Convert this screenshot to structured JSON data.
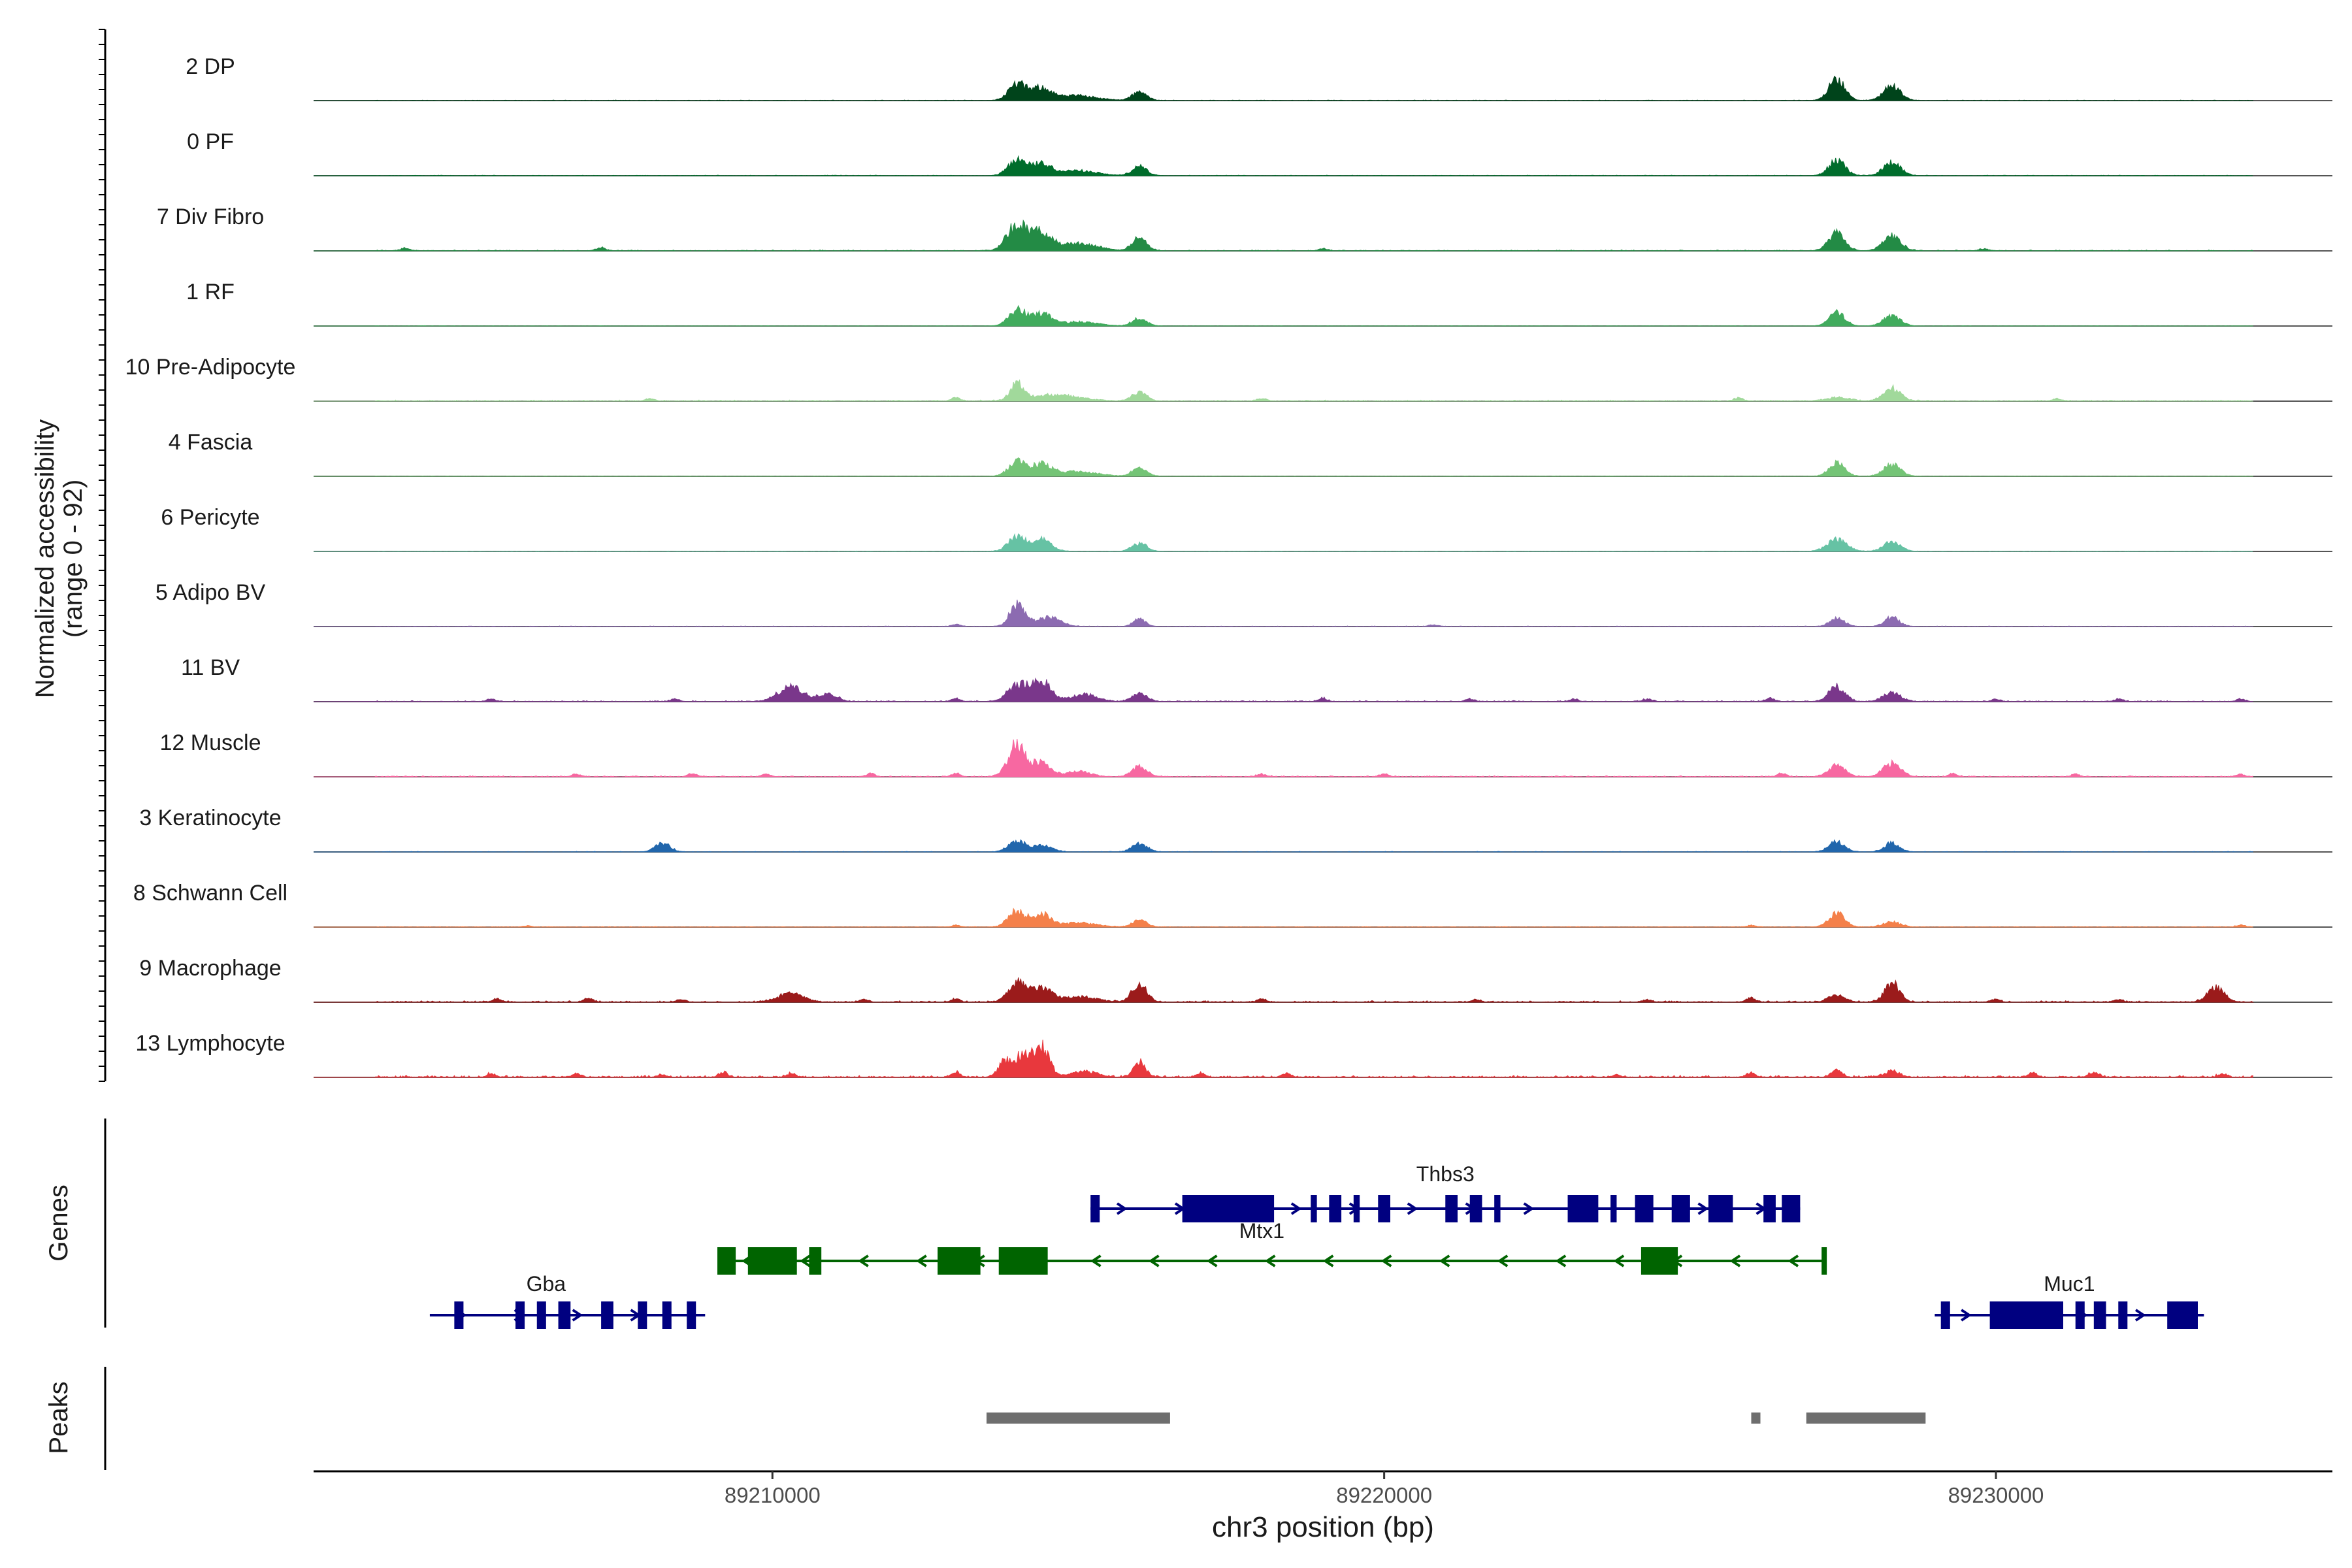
{
  "chart_data": {
    "type": "area",
    "title": "",
    "ylabel_line1": "Normalized accessibility",
    "ylabel_line2": "(range 0 - 92)",
    "xlabel": "chr3 position (bp)",
    "xlim": [
      89202500,
      89235500
    ],
    "ylim": [
      0,
      92
    ],
    "xticks": [
      89210000,
      89220000,
      89230000
    ],
    "xtick_labels": [
      "89210000",
      "89220000",
      "89230000"
    ],
    "panel_labels": {
      "genes": "Genes",
      "peaks": "Peaks"
    },
    "tracks": [
      {
        "name": "2 DP",
        "color": "#00441b",
        "peaks": [
          [
            89214000,
            40,
            140
          ],
          [
            89214400,
            30,
            160
          ],
          [
            89215000,
            12,
            300
          ],
          [
            89216000,
            20,
            120
          ],
          [
            89227400,
            50,
            130
          ],
          [
            89228300,
            35,
            140
          ]
        ],
        "noise": 1.5,
        "specks": []
      },
      {
        "name": "0 PF",
        "color": "#006d2c",
        "peaks": [
          [
            89214000,
            38,
            140
          ],
          [
            89214400,
            28,
            160
          ],
          [
            89215000,
            12,
            300
          ],
          [
            89216000,
            22,
            120
          ],
          [
            89227400,
            38,
            130
          ],
          [
            89228300,
            32,
            140
          ]
        ],
        "noise": 1.5,
        "specks": []
      },
      {
        "name": "7 Div Fibro",
        "color": "#238b45",
        "peaks": [
          [
            89214000,
            62,
            160
          ],
          [
            89214400,
            42,
            160
          ],
          [
            89215000,
            18,
            300
          ],
          [
            89216000,
            30,
            120
          ],
          [
            89227400,
            45,
            130
          ],
          [
            89228300,
            36,
            140
          ]
        ],
        "noise": 2.5,
        "specks": [
          [
            89204000,
            6
          ],
          [
            89207200,
            8
          ],
          [
            89219000,
            5
          ],
          [
            89229800,
            5
          ]
        ]
      },
      {
        "name": "1 RF",
        "color": "#41ab5d",
        "peaks": [
          [
            89214000,
            38,
            140
          ],
          [
            89214400,
            28,
            160
          ],
          [
            89215000,
            10,
            300
          ],
          [
            89216000,
            18,
            120
          ],
          [
            89227400,
            32,
            130
          ],
          [
            89228300,
            24,
            140
          ]
        ],
        "noise": 1.0,
        "specks": []
      },
      {
        "name": "10 Pre-Adipocyte",
        "color": "#a1d99b",
        "peaks": [
          [
            89214000,
            40,
            100
          ],
          [
            89214600,
            15,
            400
          ],
          [
            89216000,
            20,
            120
          ],
          [
            89227400,
            8,
            200
          ],
          [
            89228300,
            30,
            140
          ]
        ],
        "noise": 3.0,
        "specks": [
          [
            89208000,
            6
          ],
          [
            89213000,
            8
          ],
          [
            89218000,
            6
          ],
          [
            89225800,
            8
          ],
          [
            89231000,
            6
          ]
        ]
      },
      {
        "name": "4 Fascia",
        "color": "#74c476",
        "peaks": [
          [
            89214000,
            35,
            140
          ],
          [
            89214400,
            28,
            160
          ],
          [
            89215000,
            12,
            300
          ],
          [
            89216000,
            20,
            120
          ],
          [
            89227400,
            32,
            130
          ],
          [
            89228300,
            28,
            140
          ]
        ],
        "noise": 1.0,
        "specks": []
      },
      {
        "name": "6 Pericyte",
        "color": "#66c2a4",
        "peaks": [
          [
            89214000,
            35,
            140
          ],
          [
            89214400,
            28,
            160
          ],
          [
            89216000,
            20,
            120
          ],
          [
            89227400,
            28,
            160
          ],
          [
            89228300,
            22,
            140
          ]
        ],
        "noise": 1.0,
        "specks": []
      },
      {
        "name": "5 Adipo BV",
        "color": "#8c6bb1",
        "peaks": [
          [
            89214000,
            52,
            120
          ],
          [
            89214500,
            22,
            200
          ],
          [
            89216000,
            18,
            100
          ],
          [
            89227400,
            20,
            120
          ],
          [
            89228300,
            22,
            120
          ]
        ],
        "noise": 1.5,
        "specks": [
          [
            89213000,
            5
          ],
          [
            89220800,
            4
          ]
        ]
      },
      {
        "name": "11 BV",
        "color": "#7a378b",
        "peaks": [
          [
            89210300,
            35,
            200
          ],
          [
            89210900,
            20,
            150
          ],
          [
            89214000,
            40,
            160
          ],
          [
            89214400,
            48,
            160
          ],
          [
            89215100,
            18,
            200
          ],
          [
            89216000,
            20,
            120
          ],
          [
            89227400,
            35,
            130
          ],
          [
            89228300,
            22,
            140
          ]
        ],
        "noise": 3.0,
        "specks": [
          [
            89205400,
            6
          ],
          [
            89208400,
            6
          ],
          [
            89213000,
            8
          ],
          [
            89219000,
            8
          ],
          [
            89221400,
            6
          ],
          [
            89223100,
            6
          ],
          [
            89224300,
            6
          ],
          [
            89226300,
            8
          ],
          [
            89230000,
            6
          ],
          [
            89232000,
            6
          ],
          [
            89234000,
            6
          ]
        ]
      },
      {
        "name": "12 Muscle",
        "color": "#f768a1",
        "peaks": [
          [
            89214000,
            80,
            140
          ],
          [
            89214400,
            35,
            140
          ],
          [
            89215000,
            12,
            200
          ],
          [
            89216000,
            25,
            120
          ],
          [
            89227400,
            28,
            130
          ],
          [
            89228300,
            32,
            140
          ]
        ],
        "noise": 3.0,
        "specks": [
          [
            89206800,
            6
          ],
          [
            89208700,
            8
          ],
          [
            89209900,
            6
          ],
          [
            89211600,
            8
          ],
          [
            89213000,
            8
          ],
          [
            89218000,
            6
          ],
          [
            89220000,
            6
          ],
          [
            89226500,
            8
          ],
          [
            89229300,
            6
          ],
          [
            89231300,
            6
          ],
          [
            89234000,
            6
          ]
        ]
      },
      {
        "name": "3 Keratinocyte",
        "color": "#2166ac",
        "peaks": [
          [
            89208200,
            22,
            120
          ],
          [
            89214000,
            25,
            140
          ],
          [
            89214400,
            16,
            160
          ],
          [
            89216000,
            22,
            120
          ],
          [
            89227400,
            25,
            130
          ],
          [
            89228300,
            22,
            120
          ]
        ],
        "noise": 1.5,
        "specks": []
      },
      {
        "name": "8 Schwann Cell",
        "color": "#f4804a",
        "peaks": [
          [
            89214000,
            38,
            140
          ],
          [
            89214400,
            30,
            140
          ],
          [
            89215000,
            10,
            300
          ],
          [
            89216000,
            16,
            120
          ],
          [
            89227400,
            32,
            130
          ],
          [
            89228300,
            12,
            140
          ]
        ],
        "noise": 1.5,
        "specks": [
          [
            89206000,
            3
          ],
          [
            89213000,
            4
          ],
          [
            89226000,
            4
          ],
          [
            89234000,
            5
          ]
        ]
      },
      {
        "name": "9 Macrophage",
        "color": "#9b1b1b",
        "peaks": [
          [
            89210300,
            22,
            200
          ],
          [
            89214000,
            48,
            140
          ],
          [
            89214400,
            35,
            160
          ],
          [
            89215000,
            12,
            300
          ],
          [
            89216000,
            42,
            120
          ],
          [
            89227400,
            18,
            130
          ],
          [
            89228300,
            45,
            120
          ],
          [
            89233600,
            35,
            130
          ]
        ],
        "noise": 4.0,
        "specks": [
          [
            89205500,
            8
          ],
          [
            89207000,
            8
          ],
          [
            89208500,
            6
          ],
          [
            89211500,
            6
          ],
          [
            89213000,
            8
          ],
          [
            89218000,
            6
          ],
          [
            89221500,
            6
          ],
          [
            89224300,
            6
          ],
          [
            89226000,
            10
          ],
          [
            89230000,
            6
          ],
          [
            89232000,
            6
          ]
        ]
      },
      {
        "name": "13 Lymphocyte",
        "color": "#e8383d",
        "peaks": [
          [
            89213800,
            40,
            100
          ],
          [
            89214100,
            55,
            120
          ],
          [
            89214400,
            75,
            120
          ],
          [
            89215100,
            14,
            200
          ],
          [
            89216000,
            35,
            100
          ],
          [
            89227400,
            20,
            80
          ],
          [
            89228300,
            15,
            120
          ]
        ],
        "noise": 5.0,
        "specks": [
          [
            89205400,
            8
          ],
          [
            89206800,
            8
          ],
          [
            89208200,
            6
          ],
          [
            89209200,
            12
          ],
          [
            89210300,
            8
          ],
          [
            89213000,
            12
          ],
          [
            89217000,
            10
          ],
          [
            89218400,
            8
          ],
          [
            89223800,
            6
          ],
          [
            89226000,
            10
          ],
          [
            89230600,
            10
          ],
          [
            89231600,
            12
          ],
          [
            89233700,
            8
          ]
        ]
      }
    ],
    "genes": [
      {
        "name": "Thbs3",
        "strand": "+",
        "color": "#000080",
        "row": 0,
        "start": 89215200,
        "end": 89226800,
        "label_x": 89221000,
        "exons": [
          [
            89215200,
            89215350
          ],
          [
            89216700,
            89218200
          ],
          [
            89218800,
            89218900
          ],
          [
            89219100,
            89219300
          ],
          [
            89219500,
            89219600
          ],
          [
            89219900,
            89220100
          ],
          [
            89221000,
            89221200
          ],
          [
            89221400,
            89221600
          ],
          [
            89221800,
            89221900
          ],
          [
            89223000,
            89223500
          ],
          [
            89223700,
            89223800
          ],
          [
            89224100,
            89224400
          ],
          [
            89224700,
            89225000
          ],
          [
            89225300,
            89225700
          ],
          [
            89226200,
            89226400
          ],
          [
            89226500,
            89226800
          ]
        ]
      },
      {
        "name": "Mtx1",
        "strand": "-",
        "color": "#006400",
        "row": 1,
        "start": 89209100,
        "end": 89227200,
        "label_x": 89218000,
        "exons": [
          [
            89209100,
            89209400
          ],
          [
            89209600,
            89210400
          ],
          [
            89210600,
            89210800
          ],
          [
            89212700,
            89213400
          ],
          [
            89213700,
            89214500
          ],
          [
            89224200,
            89224800
          ],
          [
            89227150,
            89227200
          ]
        ]
      },
      {
        "name": "Gba",
        "strand": "+",
        "color": "#000080",
        "row": 2,
        "start": 89204400,
        "end": 89208900,
        "label_x": 89206300,
        "exons": [
          [
            89204800,
            89204950
          ],
          [
            89205800,
            89205950
          ],
          [
            89206150,
            89206300
          ],
          [
            89206500,
            89206700
          ],
          [
            89207200,
            89207400
          ],
          [
            89207800,
            89207950
          ],
          [
            89208200,
            89208350
          ],
          [
            89208600,
            89208750
          ]
        ]
      },
      {
        "name": "Muc1",
        "strand": "+",
        "color": "#000080",
        "row": 2,
        "start": 89229000,
        "end": 89233400,
        "label_x": 89231200,
        "exons": [
          [
            89229100,
            89229250
          ],
          [
            89229900,
            89231100
          ],
          [
            89231300,
            89231450
          ],
          [
            89231600,
            89231800
          ],
          [
            89232000,
            89232150
          ],
          [
            89232800,
            89233300
          ]
        ]
      }
    ],
    "peaks": [
      [
        89213500,
        89216500
      ],
      [
        89226000,
        89226150
      ],
      [
        89226900,
        89228850
      ]
    ],
    "colors": {
      "baseline": "#555555",
      "axis": "#000000",
      "peak_bar": "#6e6e6e"
    }
  }
}
